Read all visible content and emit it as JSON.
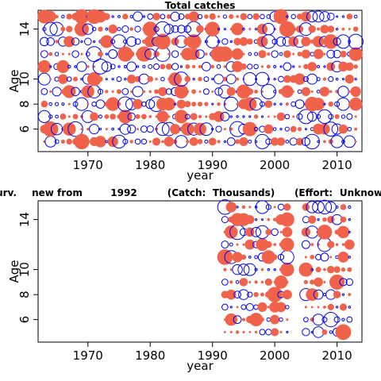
{
  "chart_data": [
    {
      "type": "bubble",
      "title": "Total catches",
      "xlabel": "year",
      "ylabel": "Age",
      "xlim": [
        1962,
        2014
      ],
      "ylim": [
        4.2,
        15.5
      ],
      "xticks": [
        1970,
        1980,
        1990,
        2000,
        2010
      ],
      "yticks": [
        6,
        8,
        10,
        14
      ],
      "years": [
        1963,
        2013
      ],
      "ages": [
        5,
        15
      ],
      "positive_color": "#f0624a",
      "negative_color": "#0000ff",
      "legend": "none"
    },
    {
      "type": "bubble",
      "title": "urv. new from 1992 (Catch: Thousands) (Effort: Unknow",
      "title_parts": [
        "urv.",
        "new from",
        "1992",
        "(Catch:",
        "Thousands)",
        "(Effort:",
        "Unknow"
      ],
      "xlabel": "year",
      "ylabel": "Age",
      "xlim": [
        1962,
        2014
      ],
      "ylim": [
        4.2,
        15.5
      ],
      "xticks": [
        1970,
        1980,
        1990,
        2000,
        2010
      ],
      "yticks": [
        6,
        8,
        10,
        14
      ],
      "years": [
        1992,
        2012
      ],
      "missing_years": [
        2003,
        2004
      ],
      "ages": [
        5,
        15
      ],
      "positive_color": "#f0624a",
      "negative_color": "#0000ff",
      "legend": "none"
    }
  ]
}
